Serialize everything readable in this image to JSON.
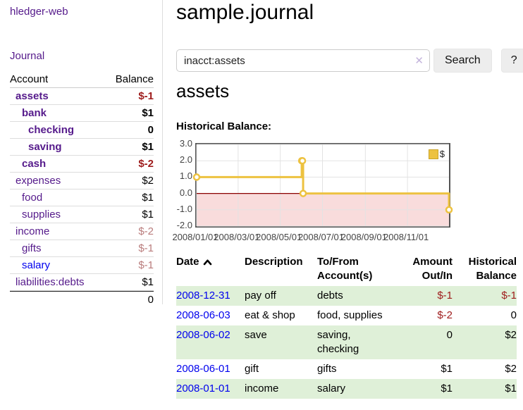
{
  "palette": {
    "link_purple": "#551a8b",
    "link_blue": "#0000ee",
    "negative_strong": "#9e1b1b",
    "negative_dim": "#b97c7c",
    "row_green": "#dff0d8",
    "chart_line": "#edc240",
    "chart_negative_fill": "#f9dcdc",
    "chart_zero_line": "#8b0000",
    "chart_grid": "#e3e3e3",
    "chart_border": "#545454"
  },
  "topbar": {
    "brand": "hledger-web"
  },
  "nav": {
    "journal": "Journal"
  },
  "sidebar": {
    "account_header": "Account",
    "balance_header": "Balance",
    "accounts": [
      {
        "name": "assets",
        "indent": 0,
        "balance": "$-1",
        "bold": true,
        "balance_style": "neg-strong",
        "link_style": "purple"
      },
      {
        "name": "bank",
        "indent": 1,
        "balance": "$1",
        "bold": true,
        "balance_style": "pos",
        "link_style": "purple"
      },
      {
        "name": "checking",
        "indent": 2,
        "balance": "0",
        "bold": true,
        "balance_style": "pos",
        "link_style": "purple"
      },
      {
        "name": "saving",
        "indent": 2,
        "balance": "$1",
        "bold": true,
        "balance_style": "pos",
        "link_style": "purple"
      },
      {
        "name": "cash",
        "indent": 1,
        "balance": "$-2",
        "bold": true,
        "balance_style": "neg-strong",
        "link_style": "purple"
      },
      {
        "name": "expenses",
        "indent": 0,
        "balance": "$2",
        "bold": false,
        "balance_style": "pos",
        "link_style": "purple"
      },
      {
        "name": "food",
        "indent": 1,
        "balance": "$1",
        "bold": false,
        "balance_style": "pos",
        "link_style": "purple"
      },
      {
        "name": "supplies",
        "indent": 1,
        "balance": "$1",
        "bold": false,
        "balance_style": "pos",
        "link_style": "purple"
      },
      {
        "name": "income",
        "indent": 0,
        "balance": "$-2",
        "bold": false,
        "balance_style": "neg-dim",
        "link_style": "purple"
      },
      {
        "name": "gifts",
        "indent": 1,
        "balance": "$-1",
        "bold": false,
        "balance_style": "neg-dim",
        "link_style": "purple"
      },
      {
        "name": "salary",
        "indent": 1,
        "balance": "$-1",
        "bold": false,
        "balance_style": "neg-dim",
        "link_style": "blue"
      },
      {
        "name": "liabilities:debts",
        "indent": 0,
        "balance": "$1",
        "bold": false,
        "balance_style": "pos",
        "link_style": "purple"
      }
    ],
    "total": "0"
  },
  "header": {
    "title": "sample.journal"
  },
  "search": {
    "value": "inacct:assets",
    "clear_label": "✕",
    "search_button": "Search",
    "help_button": "?"
  },
  "account_page": {
    "title": "assets",
    "chart_heading": "Historical Balance:"
  },
  "chart_data": {
    "type": "line",
    "title": "Historical Balance",
    "steps": true,
    "series": [
      {
        "name": "$",
        "points": [
          {
            "date": "2008-01-01",
            "value": 1
          },
          {
            "date": "2008-06-01",
            "value": 2
          },
          {
            "date": "2008-06-02",
            "value": 2
          },
          {
            "date": "2008-06-03",
            "value": 0
          },
          {
            "date": "2008-12-31",
            "value": -1
          }
        ]
      }
    ],
    "x_range": [
      "2008-01-01",
      "2008-12-31"
    ],
    "ylim": [
      -2,
      3
    ],
    "y_ticks": [
      {
        "value": 3,
        "label": "3.0"
      },
      {
        "value": 2,
        "label": "2.0"
      },
      {
        "value": 1,
        "label": "1.0"
      },
      {
        "value": 0,
        "label": "0.0"
      },
      {
        "value": -1,
        "label": "-1.0"
      },
      {
        "value": -2,
        "label": "-2.0"
      }
    ],
    "x_ticks": [
      {
        "date": "2008-01-01",
        "label": "2008/01/01"
      },
      {
        "date": "2008-03-01",
        "label": "2008/03/01"
      },
      {
        "date": "2008-05-01",
        "label": "2008/05/01"
      },
      {
        "date": "2008-07-01",
        "label": "2008/07/01"
      },
      {
        "date": "2008-09-01",
        "label": "2008/09/01"
      },
      {
        "date": "2008-11-01",
        "label": "2008/11/01"
      }
    ],
    "grid": true,
    "legend": {
      "label": "$",
      "position": "top-right"
    },
    "negative_region_shaded": true
  },
  "register_table": {
    "headers": {
      "date": "Date",
      "description": "Description",
      "tofrom_line1": "To/From",
      "tofrom_line2": "Account(s)",
      "amount_line1": "Amount",
      "amount_line2": "Out/In",
      "balance_line1": "Historical",
      "balance_line2": "Balance"
    },
    "rows": [
      {
        "date": "2008-12-31",
        "description": "pay off",
        "accounts_lines": [
          "debts"
        ],
        "amount": "$-1",
        "amount_style": "neg",
        "balance": "$-1",
        "balance_style": "neg",
        "shaded": true
      },
      {
        "date": "2008-06-03",
        "description": "eat & shop",
        "accounts_lines": [
          "food, supplies"
        ],
        "amount": "$-2",
        "amount_style": "neg",
        "balance": "0",
        "balance_style": "pos",
        "shaded": false
      },
      {
        "date": "2008-06-02",
        "description": "save",
        "accounts_lines": [
          "saving,",
          "checking"
        ],
        "amount": "0",
        "amount_style": "pos",
        "balance": "$2",
        "balance_style": "pos",
        "shaded": true
      },
      {
        "date": "2008-06-01",
        "description": "gift",
        "accounts_lines": [
          "gifts"
        ],
        "amount": "$1",
        "amount_style": "pos",
        "balance": "$2",
        "balance_style": "pos",
        "shaded": false
      },
      {
        "date": "2008-01-01",
        "description": "income",
        "accounts_lines": [
          "salary"
        ],
        "amount": "$1",
        "amount_style": "pos",
        "balance": "$1",
        "balance_style": "pos",
        "shaded": true
      }
    ]
  }
}
